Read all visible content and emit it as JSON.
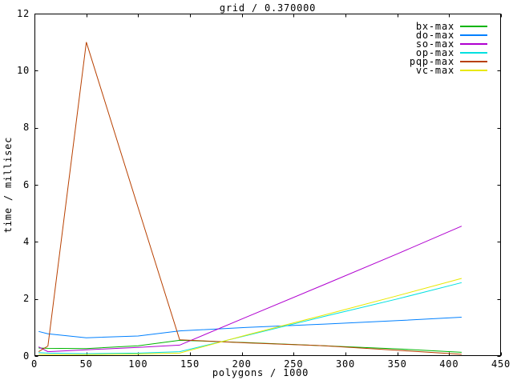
{
  "window": {
    "background": "#ffffff",
    "axis_color": "#000000",
    "text_color": "#000000"
  },
  "chart_data": {
    "type": "line",
    "title": "grid / 0.370000",
    "xlabel": "polygons / 1000",
    "ylabel": "time / millisec",
    "xlim": [
      0,
      450
    ],
    "ylim": [
      0,
      12
    ],
    "xticks": [
      0,
      50,
      100,
      150,
      200,
      250,
      300,
      350,
      400,
      450
    ],
    "yticks": [
      0,
      2,
      4,
      6,
      8,
      10,
      12
    ],
    "grid": false,
    "legend_position": "top-right-inside",
    "x": [
      4,
      13,
      50,
      100,
      140,
      205,
      280,
      350,
      412
    ],
    "series": [
      {
        "name": "bx-max",
        "color": "#00b400",
        "values": [
          0.28,
          0.27,
          0.26,
          0.36,
          0.55,
          0.47,
          0.36,
          0.25,
          0.13
        ]
      },
      {
        "name": "do-max",
        "color": "#0080ff",
        "values": [
          0.86,
          0.78,
          0.64,
          0.7,
          0.88,
          1.0,
          1.12,
          1.24,
          1.36
        ]
      },
      {
        "name": "so-max",
        "color": "#b000d0",
        "values": [
          0.32,
          0.15,
          0.22,
          0.3,
          0.38,
          1.37,
          2.51,
          3.58,
          4.55
        ]
      },
      {
        "name": "op-max",
        "color": "#00e0e0",
        "values": [
          0.12,
          0.1,
          0.08,
          0.1,
          0.15,
          0.72,
          1.39,
          2.0,
          2.57
        ]
      },
      {
        "name": "pqp-max",
        "color": "#b84000",
        "values": [
          0.15,
          0.35,
          11.0,
          5.2,
          0.57,
          0.46,
          0.36,
          0.2,
          0.06
        ]
      },
      {
        "name": "vc-max",
        "color": "#e8e800",
        "values": [
          0.06,
          0.05,
          0.05,
          0.07,
          0.1,
          0.74,
          1.44,
          2.11,
          2.72
        ]
      }
    ]
  }
}
